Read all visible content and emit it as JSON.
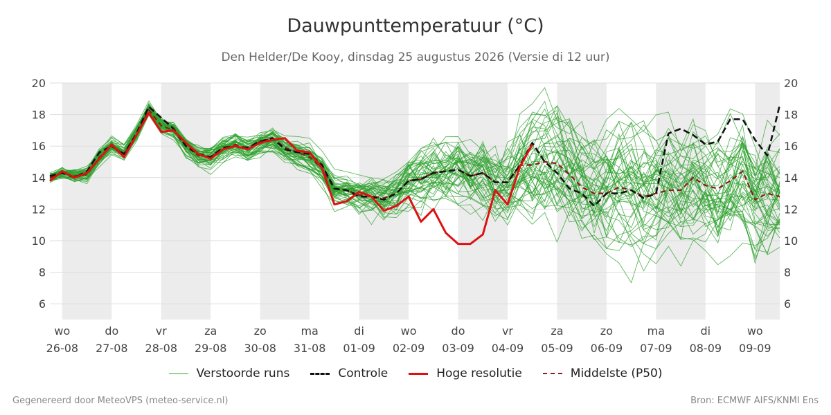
{
  "title": "Dauwpunttemperatuur (°C)",
  "subtitle": "Den Helder/De Kooy, dinsdag 25 augustus 2026 (Versie di 12 uur)",
  "footer_left": "Gegenereerd door MeteoVPS (meteo-service.nl)",
  "footer_right": "Bron: ECMWF AIFS/KNMI Ens",
  "colors": {
    "ensemble": "#2ca02c",
    "control": "#111111",
    "high_res": "#dd1111",
    "median": "#8b1a1a",
    "weekend_band": "#ececec",
    "grid": "#dddddd"
  },
  "legend": [
    {
      "label": "Verstoorde runs",
      "style": "ensemble"
    },
    {
      "label": "Controle",
      "style": "control"
    },
    {
      "label": "Hoge resolutie",
      "style": "high_res"
    },
    {
      "label": "Middelste (P50)",
      "style": "median"
    }
  ],
  "chart_data": {
    "type": "line",
    "ylim": [
      5,
      20
    ],
    "yticks": [
      6,
      8,
      10,
      12,
      14,
      16,
      18,
      20
    ],
    "xlim": [
      -0.25,
      14.5
    ],
    "x_unit": "days after 26-08-2026 00:00",
    "shaded_days": [
      0,
      2,
      4,
      6,
      8,
      10,
      12,
      14
    ],
    "x_ticks": [
      {
        "day": "wo",
        "date": "26-08"
      },
      {
        "day": "do",
        "date": "27-08"
      },
      {
        "day": "vr",
        "date": "28-08"
      },
      {
        "day": "za",
        "date": "29-08"
      },
      {
        "day": "zo",
        "date": "30-08"
      },
      {
        "day": "ma",
        "date": "31-08"
      },
      {
        "day": "di",
        "date": "01-09"
      },
      {
        "day": "wo",
        "date": "02-09"
      },
      {
        "day": "do",
        "date": "03-09"
      },
      {
        "day": "vr",
        "date": "04-09"
      },
      {
        "day": "za",
        "date": "05-09"
      },
      {
        "day": "zo",
        "date": "06-09"
      },
      {
        "day": "ma",
        "date": "07-09"
      },
      {
        "day": "di",
        "date": "08-09"
      },
      {
        "day": "wo",
        "date": "09-09"
      }
    ],
    "series": [
      {
        "name": "Controle",
        "x": [
          -0.25,
          0,
          0.25,
          0.5,
          0.75,
          1,
          1.25,
          1.5,
          1.75,
          2,
          2.25,
          2.5,
          2.75,
          3,
          3.25,
          3.5,
          3.75,
          4,
          4.25,
          4.5,
          4.75,
          5,
          5.25,
          5.5,
          5.75,
          6,
          6.25,
          6.5,
          6.75,
          7,
          7.25,
          7.5,
          7.75,
          8,
          8.25,
          8.5,
          8.75,
          9,
          9.25,
          9.5,
          9.75,
          10,
          10.25,
          10.5,
          10.75,
          11,
          11.25,
          11.5,
          11.75,
          12,
          12.25,
          12.5,
          12.75,
          13,
          13.25,
          13.5,
          13.75,
          14,
          14.25,
          14.5
        ],
        "values": [
          14.1,
          14.3,
          14.0,
          14.4,
          15.6,
          16.0,
          15.5,
          16.8,
          18.5,
          17.8,
          17.1,
          16.0,
          15.5,
          15.3,
          15.9,
          16.0,
          15.9,
          16.3,
          16.5,
          15.8,
          15.6,
          15.5,
          14.8,
          13.3,
          13.2,
          12.8,
          12.8,
          12.6,
          13.0,
          13.8,
          13.9,
          14.3,
          14.4,
          14.5,
          14.1,
          14.3,
          13.7,
          13.7,
          14.8,
          16.2,
          15.0,
          14.3,
          13.3,
          13.0,
          12.2,
          13.0,
          13.0,
          13.2,
          12.7,
          13.0,
          16.8,
          17.1,
          16.7,
          16.1,
          16.3,
          17.7,
          17.7,
          16.4,
          15.4,
          18.6
        ]
      },
      {
        "name": "Hoge resolutie",
        "x": [
          -0.25,
          0,
          0.25,
          0.5,
          0.75,
          1,
          1.25,
          1.5,
          1.75,
          2,
          2.25,
          2.5,
          2.75,
          3,
          3.25,
          3.5,
          3.75,
          4,
          4.25,
          4.5,
          4.75,
          5,
          5.25,
          5.5,
          5.75,
          6,
          6.25,
          6.5,
          6.75,
          7,
          7.25,
          7.5,
          7.75,
          8,
          8.25,
          8.5,
          8.75,
          9,
          9.25,
          9.5
        ],
        "values": [
          13.8,
          14.4,
          14.0,
          14.3,
          15.2,
          16.1,
          15.3,
          16.7,
          18.1,
          16.9,
          17.0,
          16.2,
          15.5,
          15.2,
          15.8,
          16.0,
          15.8,
          16.2,
          16.4,
          16.5,
          15.7,
          15.6,
          14.6,
          12.3,
          12.5,
          13.1,
          12.8,
          11.9,
          12.2,
          12.8,
          11.2,
          12.0,
          10.5,
          9.8,
          9.8,
          10.4,
          13.2,
          12.3,
          14.7,
          16.1
        ]
      },
      {
        "name": "Middelste (P50)",
        "x": [
          -0.25,
          0,
          0.25,
          0.5,
          0.75,
          1,
          1.25,
          1.5,
          1.75,
          2,
          2.25,
          2.5,
          2.75,
          3,
          3.25,
          3.5,
          3.75,
          4,
          4.25,
          4.5,
          4.75,
          5,
          5.25,
          5.5,
          5.75,
          6,
          6.25,
          6.5,
          6.75,
          7,
          7.25,
          7.5,
          7.75,
          8,
          8.25,
          8.5,
          8.75,
          9,
          9.25,
          9.5,
          9.75,
          10,
          10.25,
          10.5,
          10.75,
          11,
          11.25,
          11.5,
          11.75,
          12,
          12.25,
          12.5,
          12.75,
          13,
          13.25,
          13.5,
          13.75,
          14,
          14.25,
          14.5
        ],
        "values": [
          14.0,
          14.3,
          14.1,
          14.2,
          15.3,
          16.0,
          15.5,
          16.8,
          18.3,
          17.3,
          17.0,
          16.0,
          15.4,
          15.3,
          15.8,
          16.1,
          15.8,
          16.3,
          16.5,
          15.9,
          15.6,
          15.3,
          14.6,
          13.3,
          13.2,
          12.9,
          12.8,
          12.7,
          13.0,
          13.8,
          13.9,
          14.3,
          14.4,
          14.5,
          14.1,
          14.3,
          13.7,
          13.7,
          14.8,
          14.8,
          15.0,
          14.9,
          14.2,
          13.4,
          13.0,
          13.0,
          13.4,
          13.2,
          12.8,
          13.0,
          13.2,
          13.2,
          14.0,
          13.5,
          13.3,
          13.8,
          14.4,
          12.6,
          13.0,
          12.8
        ]
      }
    ],
    "ensemble_members": 50
  }
}
